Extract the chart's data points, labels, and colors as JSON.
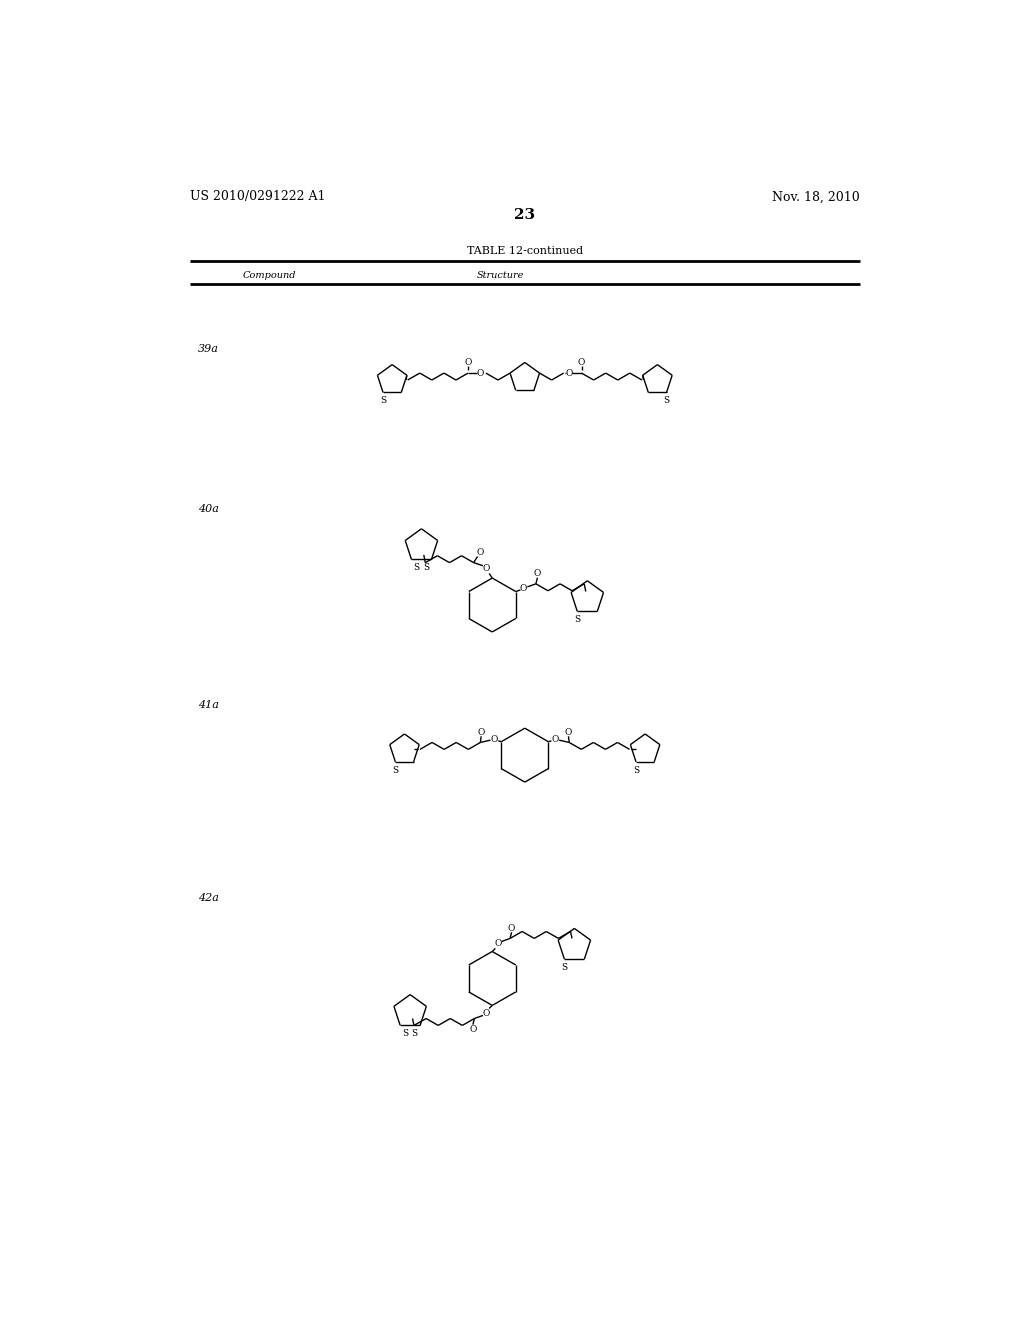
{
  "background_color": "#ffffff",
  "page_header_left": "US 2010/0291222 A1",
  "page_header_right": "Nov. 18, 2010",
  "page_number": "23",
  "table_title": "TABLE 12-continued",
  "col1_header": "Compound",
  "col2_header": "Structure",
  "line_color": "#000000",
  "text_color": "#000000",
  "font_size_body": 8,
  "font_size_page": 9,
  "font_size_table_title": 8,
  "font_size_page_number": 11
}
